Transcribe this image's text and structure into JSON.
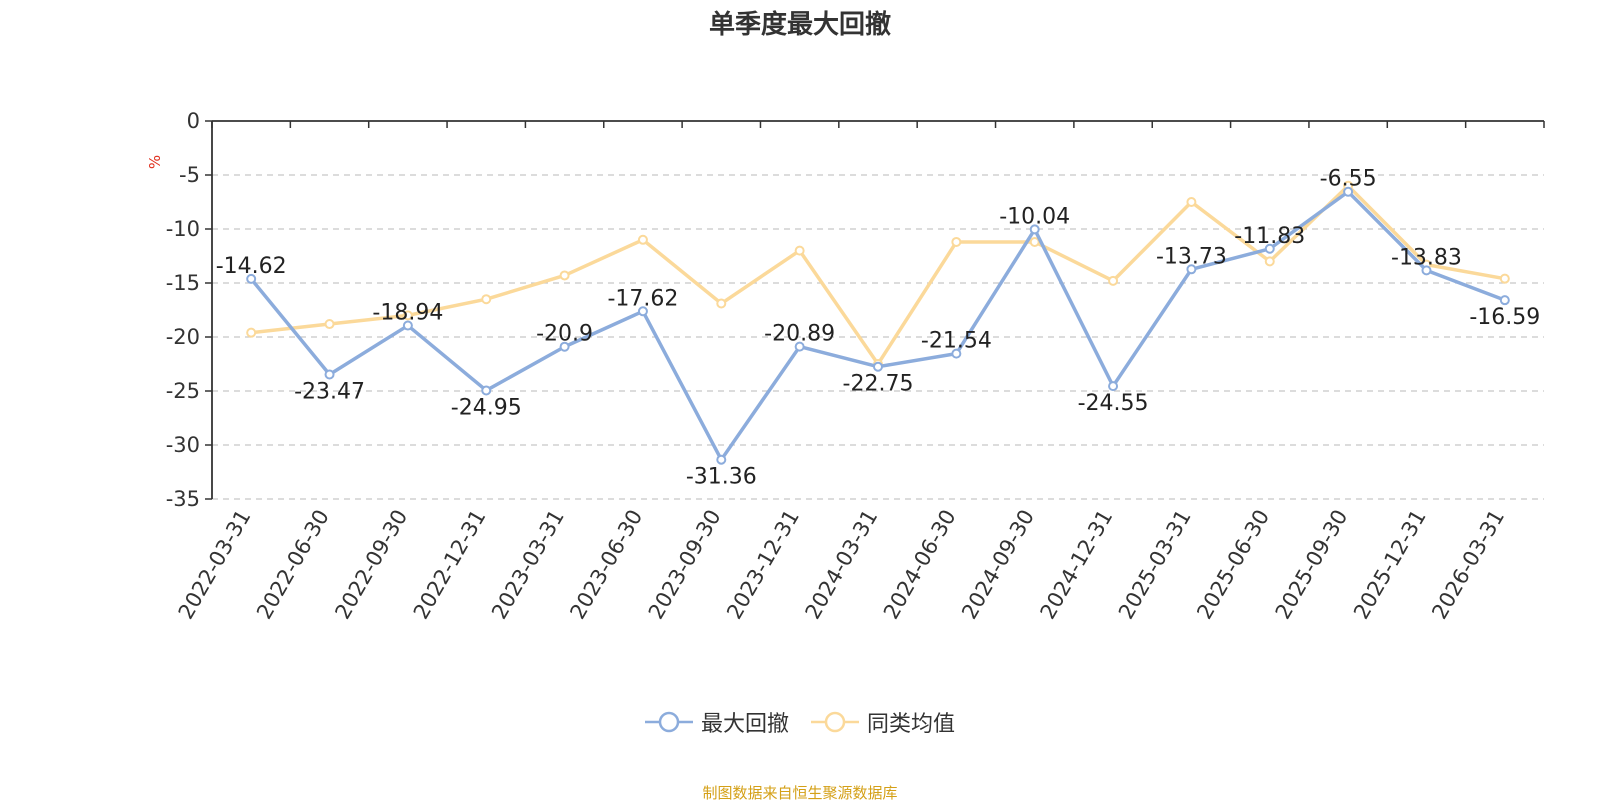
{
  "chart_data": {
    "type": "line",
    "title": "单季度最大回撤",
    "ylabel": "%",
    "ylim": [
      -35,
      0
    ],
    "yticks": [
      0,
      -5,
      -10,
      -15,
      -20,
      -25,
      -30,
      -35
    ],
    "grid": true,
    "legend_position": "bottom-center",
    "categories": [
      "2022-03-31",
      "2022-06-30",
      "2022-09-30",
      "2022-12-31",
      "2023-03-31",
      "2023-06-30",
      "2023-09-30",
      "2023-12-31",
      "2024-03-31",
      "2024-06-30",
      "2024-09-30",
      "2024-12-31",
      "2025-03-31",
      "2025-06-30",
      "2025-09-30",
      "2025-12-31",
      "2026-03-31"
    ],
    "series": [
      {
        "name": "最大回撤",
        "color": "#8cacdc",
        "labels": true,
        "values": [
          -14.62,
          -23.47,
          -18.94,
          -24.95,
          -20.9,
          -17.62,
          -31.36,
          -20.89,
          -22.75,
          -21.54,
          -10.04,
          -24.55,
          -13.73,
          -11.83,
          -6.55,
          -13.83,
          -16.59
        ]
      },
      {
        "name": "同类均值",
        "color": "#fbd99a",
        "labels": false,
        "values": [
          -19.6,
          -18.8,
          -18.0,
          -16.5,
          -14.3,
          -11.0,
          -16.9,
          -12.0,
          -22.5,
          -11.2,
          -11.2,
          -14.8,
          -7.5,
          -13.0,
          -6.0,
          -13.3,
          -14.6
        ]
      }
    ]
  },
  "source_note": "制图数据来自恒生聚源数据库"
}
